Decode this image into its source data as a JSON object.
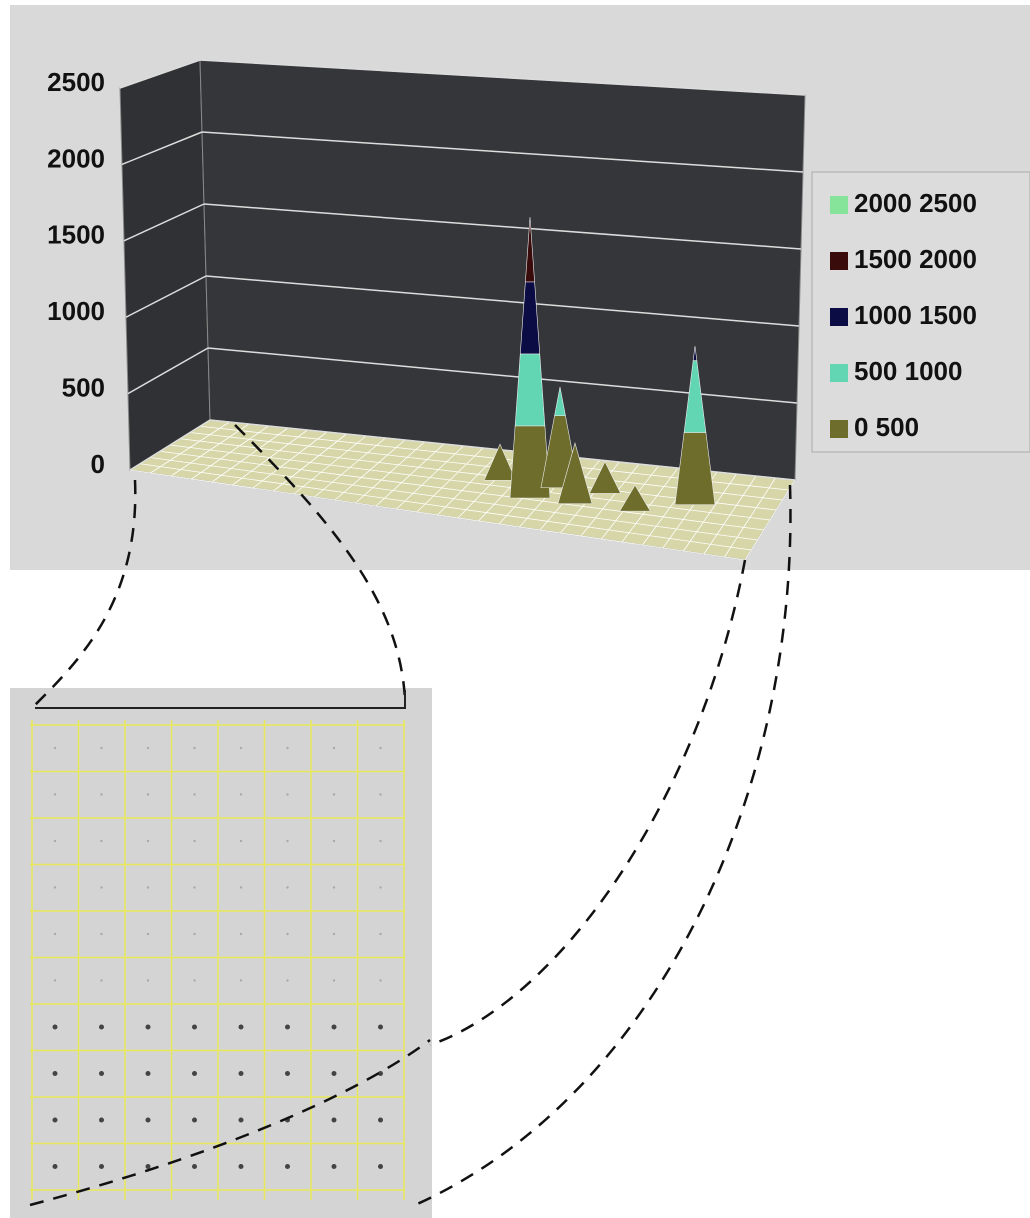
{
  "chart_data": {
    "type": "surface",
    "ylim": [
      0,
      2500
    ],
    "yticks": [
      0,
      500,
      1000,
      1500,
      2000,
      2500
    ],
    "xlim": [
      0,
      40
    ],
    "x": [
      22,
      24,
      26,
      27,
      29,
      31,
      35
    ],
    "values": [
      250,
      1950,
      700,
      420,
      220,
      180,
      1100
    ],
    "series": [
      {
        "name": "2000 2500",
        "color": "#86e39a"
      },
      {
        "name": "1500 2000",
        "color": "#3a0b0b"
      },
      {
        "name": "1000 1500",
        "color": "#0c0c44"
      },
      {
        "name": "500 1000",
        "color": "#62d6b3"
      },
      {
        "name": "0 500",
        "color": "#6e6d2c"
      }
    ],
    "grid": true
  }
}
